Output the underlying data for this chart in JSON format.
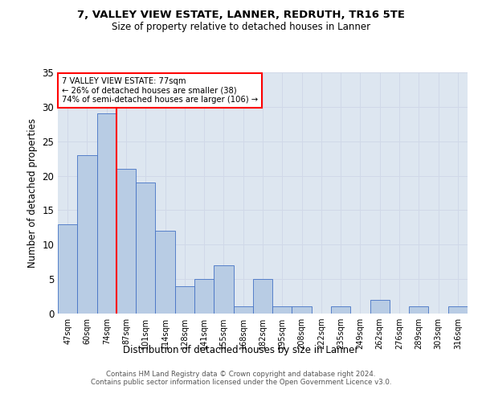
{
  "title1": "7, VALLEY VIEW ESTATE, LANNER, REDRUTH, TR16 5TE",
  "title2": "Size of property relative to detached houses in Lanner",
  "xlabel": "Distribution of detached houses by size in Lanner",
  "ylabel": "Number of detached properties",
  "categories": [
    "47sqm",
    "60sqm",
    "74sqm",
    "87sqm",
    "101sqm",
    "114sqm",
    "128sqm",
    "141sqm",
    "155sqm",
    "168sqm",
    "182sqm",
    "195sqm",
    "208sqm",
    "222sqm",
    "235sqm",
    "249sqm",
    "262sqm",
    "276sqm",
    "289sqm",
    "303sqm",
    "316sqm"
  ],
  "values": [
    13,
    23,
    29,
    21,
    19,
    12,
    4,
    5,
    7,
    1,
    5,
    1,
    1,
    0,
    1,
    0,
    2,
    0,
    1,
    0,
    1
  ],
  "bar_color": "#b8cce4",
  "bar_edge_color": "#4472c4",
  "annotation_label": "7 VALLEY VIEW ESTATE: 77sqm",
  "annotation_line1": "← 26% of detached houses are smaller (38)",
  "annotation_line2": "74% of semi-detached houses are larger (106) →",
  "annotation_box_color": "white",
  "annotation_box_edge_color": "red",
  "vline_color": "red",
  "vline_x": 2.5,
  "ylim": [
    0,
    35
  ],
  "yticks": [
    0,
    5,
    10,
    15,
    20,
    25,
    30,
    35
  ],
  "grid_color": "#d0d8e8",
  "bg_color": "#dde6f0",
  "footer1": "Contains HM Land Registry data © Crown copyright and database right 2024.",
  "footer2": "Contains public sector information licensed under the Open Government Licence v3.0."
}
